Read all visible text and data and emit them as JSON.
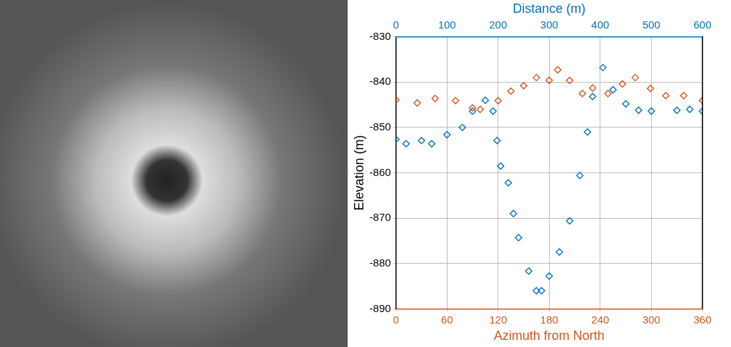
{
  "chart_data": {
    "type": "scatter",
    "xlabel": "Azimuth from North",
    "x2label": "Distance (m)",
    "ylabel": "Elevation (m)",
    "xlim": [
      0,
      360
    ],
    "xticks": [
      0,
      60,
      120,
      180,
      240,
      300,
      360
    ],
    "x2lim": [
      0,
      600
    ],
    "x2ticks": [
      0,
      100,
      200,
      300,
      400,
      500,
      600
    ],
    "ylim": [
      -890,
      -830
    ],
    "yticks": [
      -890,
      -880,
      -870,
      -860,
      -850,
      -840,
      -830
    ],
    "grid": true,
    "legend": false,
    "marker": "diamond",
    "series": [
      {
        "color": "#d95319",
        "x": [
          0,
          25,
          46,
          70,
          90,
          99,
          120,
          135,
          150,
          165,
          180,
          190,
          204,
          219,
          231,
          249,
          266,
          281,
          299,
          317,
          338,
          360
        ],
        "values": [
          -843.9,
          -844.6,
          -843.6,
          -844.1,
          -845.7,
          -846,
          -844.1,
          -842,
          -840.8,
          -839,
          -839.6,
          -837.3,
          -839.6,
          -842.5,
          -841.3,
          -842.5,
          -840.4,
          -839,
          -841.4,
          -843,
          -843,
          -844.1
        ]
      },
      {
        "color": "#0072bd",
        "axis": "x2",
        "x": [
          0,
          20,
          50,
          70,
          100,
          130,
          150,
          175,
          190,
          198,
          205,
          220,
          230,
          240,
          260,
          275,
          285,
          300,
          320,
          340,
          360,
          375,
          385,
          405,
          425,
          450,
          475,
          500,
          550,
          575,
          600
        ],
        "values": [
          -852.6,
          -853.6,
          -852.9,
          -853.6,
          -851.6,
          -850,
          -846.4,
          -844,
          -846.4,
          -852.9,
          -858.5,
          -862.2,
          -869,
          -874.3,
          -881.7,
          -886,
          -886,
          -882.8,
          -877.5,
          -870.6,
          -860.6,
          -851,
          -843.2,
          -836.8,
          -841.7,
          -844.8,
          -846.2,
          -846.4,
          -846.2,
          -846,
          -846.4
        ]
      }
    ]
  }
}
